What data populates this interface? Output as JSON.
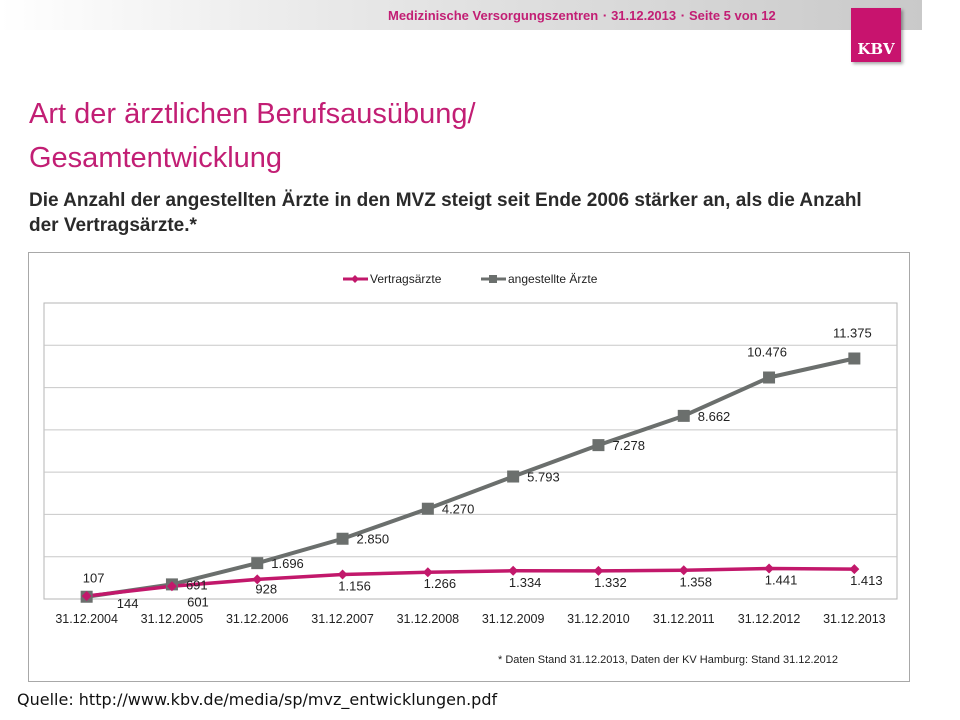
{
  "header": {
    "parts": [
      "Medizinische Versorgungszentren",
      "31.12.2013",
      "Seite 5 von 12"
    ],
    "separator": "▪",
    "logo": "KBV"
  },
  "slide": {
    "title_line1": "Art der ärztlichen Berufsausübung/",
    "title_line2": "Gesamtentwicklung",
    "subtitle": "Die Anzahl der angestellten Ärzte in den MVZ steigt seit Ende 2006 stärker an, als die Anzahl der Vertragsärzte.*",
    "footnote": "* Daten Stand 31.12.2013, Daten der KV Hamburg: Stand 31.12.2012",
    "source": "Quelle: http://www.kbv.de/media/sp/mvz_entwicklungen.pdf"
  },
  "colors": {
    "accent": "#c21e74",
    "vertragsaerzte": "#c2186b",
    "angestellte": "#6b6f6d",
    "grid": "#c8c8c8"
  },
  "chart_data": {
    "type": "line",
    "title": "",
    "xlabel": "",
    "ylabel": "",
    "ylim": [
      0,
      14000
    ],
    "grid": true,
    "legend": "top-center",
    "categories": [
      "31.12.2004",
      "31.12.2005",
      "31.12.2006",
      "31.12.2007",
      "31.12.2008",
      "31.12.2009",
      "31.12.2010",
      "31.12.2011",
      "31.12.2012",
      "31.12.2013"
    ],
    "series": [
      {
        "name": "Vertragsärzte",
        "marker": "diamond",
        "values": [
          144,
          601,
          928,
          1156,
          1266,
          1334,
          1332,
          1358,
          1441,
          1413
        ],
        "labels": [
          "144",
          "601",
          "928",
          "1.156",
          "1.266",
          "1.334",
          "1.332",
          "1.358",
          "1.441",
          "1.413"
        ]
      },
      {
        "name": "angestellte Ärzte",
        "marker": "square",
        "values": [
          107,
          691,
          1696,
          2850,
          4270,
          5793,
          7278,
          8662,
          10476,
          11375
        ],
        "labels": [
          "107",
          "691",
          "1.696",
          "2.850",
          "4.270",
          "5.793",
          "7.278",
          "8.662",
          "10.476",
          "11.375"
        ]
      }
    ]
  }
}
